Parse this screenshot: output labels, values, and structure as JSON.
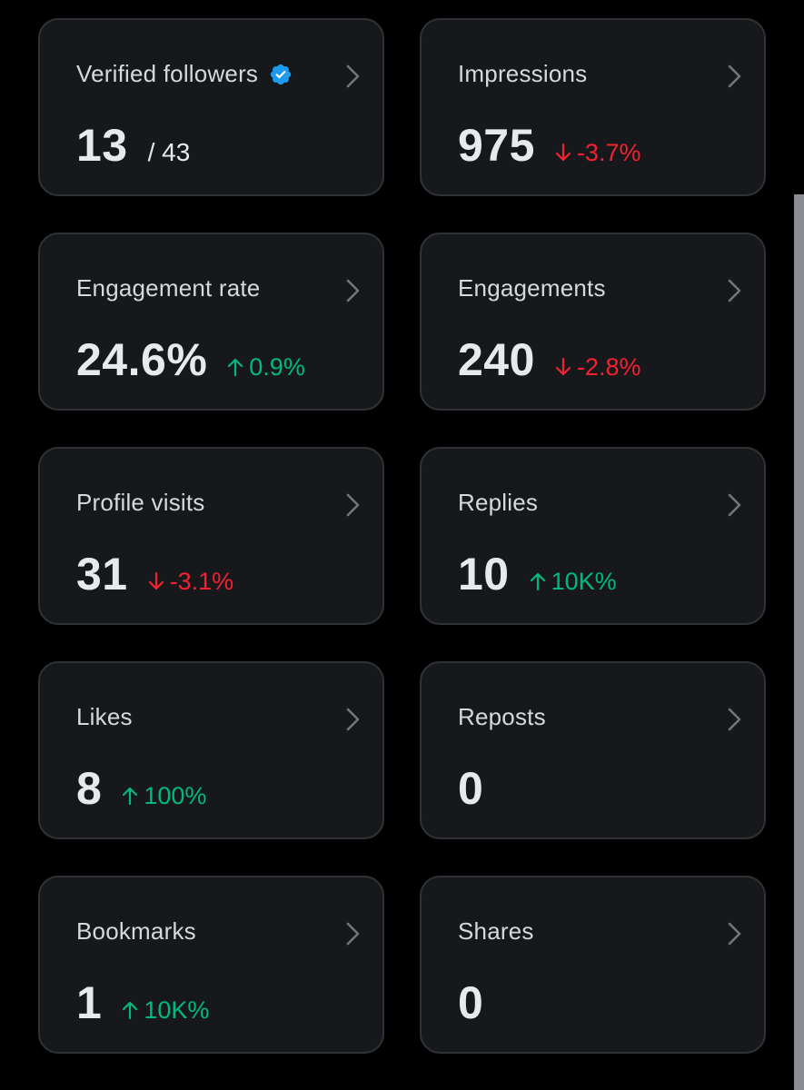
{
  "colors": {
    "up": "#00ba7c",
    "down": "#f4212e",
    "verified_badge": "#1d9bf0"
  },
  "cards": [
    {
      "title": "Verified followers",
      "value": "13",
      "total": "/ 43",
      "change": "",
      "direction": "",
      "has_verified_icon": true,
      "chevron_icon": "chevron-right-icon"
    },
    {
      "title": "Impressions",
      "value": "975",
      "total": "",
      "change": "-3.7%",
      "direction": "down",
      "chevron_icon": "chevron-right-icon"
    },
    {
      "title": "Engagement rate",
      "value": "24.6%",
      "total": "",
      "change": "0.9%",
      "direction": "up",
      "chevron_icon": "chevron-right-icon"
    },
    {
      "title": "Engagements",
      "value": "240",
      "total": "",
      "change": "-2.8%",
      "direction": "down",
      "chevron_icon": "chevron-right-icon"
    },
    {
      "title": "Profile visits",
      "value": "31",
      "total": "",
      "change": "-3.1%",
      "direction": "down",
      "chevron_icon": "chevron-right-icon"
    },
    {
      "title": "Replies",
      "value": "10",
      "total": "",
      "change": "10K%",
      "direction": "up",
      "chevron_icon": "chevron-right-icon"
    },
    {
      "title": "Likes",
      "value": "8",
      "total": "",
      "change": "100%",
      "direction": "up",
      "chevron_icon": "chevron-right-icon"
    },
    {
      "title": "Reposts",
      "value": "0",
      "total": "",
      "change": "",
      "direction": "",
      "chevron_icon": "chevron-right-icon"
    },
    {
      "title": "Bookmarks",
      "value": "1",
      "total": "",
      "change": "10K%",
      "direction": "up",
      "chevron_icon": "chevron-right-icon"
    },
    {
      "title": "Shares",
      "value": "0",
      "total": "",
      "change": "",
      "direction": "",
      "chevron_icon": "chevron-right-icon"
    }
  ]
}
